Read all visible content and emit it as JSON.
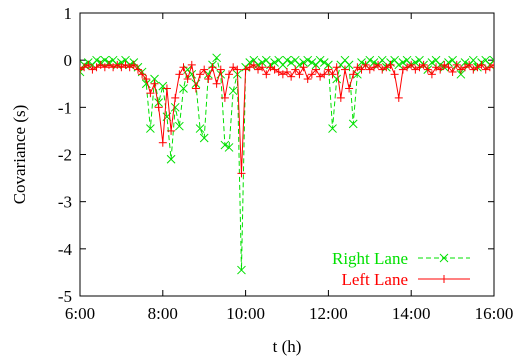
{
  "chart_data": {
    "type": "line",
    "title": "",
    "xlabel": "t (h)",
    "ylabel": "Covariance (s)",
    "xlim": [
      6,
      16
    ],
    "ylim": [
      -5,
      1
    ],
    "xticks": [
      {
        "value": 6,
        "label": "6:00"
      },
      {
        "value": 8,
        "label": "8:00"
      },
      {
        "value": 10,
        "label": "10:00"
      },
      {
        "value": 12,
        "label": "12:00"
      },
      {
        "value": 14,
        "label": "14:00"
      },
      {
        "value": 16,
        "label": "16:00"
      }
    ],
    "yticks": [
      {
        "value": 1,
        "label": "1"
      },
      {
        "value": 0,
        "label": "0"
      },
      {
        "value": -1,
        "label": "-1"
      },
      {
        "value": -2,
        "label": "-2"
      },
      {
        "value": -3,
        "label": "-3"
      },
      {
        "value": -4,
        "label": "-4"
      },
      {
        "value": -5,
        "label": "-5"
      }
    ],
    "grid": false,
    "legend_position": "bottom-right",
    "series": [
      {
        "name": "Right Lane",
        "color": "#00e000",
        "line_style": "dashed",
        "marker": "x",
        "points": [
          [
            6.0,
            -0.25
          ],
          [
            6.1,
            -0.1
          ],
          [
            6.2,
            -0.05
          ],
          [
            6.3,
            -0.1
          ],
          [
            6.4,
            0.0
          ],
          [
            6.5,
            -0.05
          ],
          [
            6.6,
            0.0
          ],
          [
            6.7,
            -0.05
          ],
          [
            6.8,
            0.0
          ],
          [
            6.9,
            -0.1
          ],
          [
            7.0,
            -0.05
          ],
          [
            7.1,
            0.0
          ],
          [
            7.2,
            -0.1
          ],
          [
            7.3,
            -0.05
          ],
          [
            7.4,
            -0.15
          ],
          [
            7.5,
            -0.25
          ],
          [
            7.6,
            -0.5
          ],
          [
            7.7,
            -1.45
          ],
          [
            7.8,
            -0.4
          ],
          [
            7.9,
            -0.9
          ],
          [
            8.0,
            -0.55
          ],
          [
            8.1,
            -1.2
          ],
          [
            8.2,
            -2.1
          ],
          [
            8.3,
            -1.0
          ],
          [
            8.4,
            -1.4
          ],
          [
            8.5,
            -0.6
          ],
          [
            8.6,
            -0.2
          ],
          [
            8.7,
            -0.3
          ],
          [
            8.8,
            -0.5
          ],
          [
            8.9,
            -1.45
          ],
          [
            9.0,
            -1.65
          ],
          [
            9.1,
            -0.3
          ],
          [
            9.2,
            -0.1
          ],
          [
            9.3,
            0.05
          ],
          [
            9.4,
            -0.3
          ],
          [
            9.5,
            -1.8
          ],
          [
            9.6,
            -1.85
          ],
          [
            9.7,
            -0.65
          ],
          [
            9.8,
            -0.3
          ],
          [
            9.9,
            -4.45
          ],
          [
            10.0,
            -0.15
          ],
          [
            10.1,
            -0.05
          ],
          [
            10.2,
            0.0
          ],
          [
            10.3,
            -0.1
          ],
          [
            10.4,
            -0.05
          ],
          [
            10.5,
            0.0
          ],
          [
            10.6,
            -0.1
          ],
          [
            10.7,
            -0.05
          ],
          [
            10.8,
            0.0
          ],
          [
            10.9,
            -0.1
          ],
          [
            11.0,
            0.0
          ],
          [
            11.1,
            -0.05
          ],
          [
            11.2,
            0.0
          ],
          [
            11.3,
            -0.1
          ],
          [
            11.4,
            -0.05
          ],
          [
            11.5,
            0.0
          ],
          [
            11.6,
            -0.05
          ],
          [
            11.7,
            -0.1
          ],
          [
            11.8,
            0.0
          ],
          [
            11.9,
            -0.05
          ],
          [
            12.0,
            -0.1
          ],
          [
            12.1,
            -1.45
          ],
          [
            12.2,
            -0.4
          ],
          [
            12.3,
            -0.1
          ],
          [
            12.4,
            0.0
          ],
          [
            12.5,
            -0.1
          ],
          [
            12.6,
            -1.35
          ],
          [
            12.7,
            -0.3
          ],
          [
            12.8,
            -0.05
          ],
          [
            12.9,
            -0.1
          ],
          [
            13.0,
            0.0
          ],
          [
            13.1,
            -0.05
          ],
          [
            13.2,
            -0.1
          ],
          [
            13.3,
            0.0
          ],
          [
            13.4,
            -0.15
          ],
          [
            13.5,
            -0.05
          ],
          [
            13.6,
            0.0
          ],
          [
            13.7,
            -0.1
          ],
          [
            13.8,
            -0.05
          ],
          [
            13.9,
            0.0
          ],
          [
            14.0,
            -0.1
          ],
          [
            14.1,
            -0.05
          ],
          [
            14.2,
            0.0
          ],
          [
            14.3,
            -0.1
          ],
          [
            14.4,
            -0.2
          ],
          [
            14.5,
            -0.05
          ],
          [
            14.6,
            0.0
          ],
          [
            14.7,
            -0.1
          ],
          [
            14.8,
            -0.15
          ],
          [
            14.9,
            -0.05
          ],
          [
            15.0,
            0.0
          ],
          [
            15.1,
            -0.1
          ],
          [
            15.2,
            -0.3
          ],
          [
            15.3,
            -0.05
          ],
          [
            15.4,
            -0.1
          ],
          [
            15.5,
            0.0
          ],
          [
            15.6,
            -0.15
          ],
          [
            15.7,
            -0.05
          ],
          [
            15.8,
            0.0
          ],
          [
            15.9,
            -0.1
          ],
          [
            16.0,
            0.0
          ]
        ]
      },
      {
        "name": "Left Lane",
        "color": "#ff0000",
        "line_style": "solid",
        "marker": "+",
        "points": [
          [
            6.0,
            -0.2
          ],
          [
            6.1,
            -0.15
          ],
          [
            6.2,
            -0.1
          ],
          [
            6.3,
            -0.2
          ],
          [
            6.4,
            -0.15
          ],
          [
            6.5,
            -0.1
          ],
          [
            6.6,
            -0.15
          ],
          [
            6.7,
            -0.1
          ],
          [
            6.8,
            -0.15
          ],
          [
            6.9,
            -0.1
          ],
          [
            7.0,
            -0.15
          ],
          [
            7.1,
            -0.1
          ],
          [
            7.2,
            -0.15
          ],
          [
            7.3,
            -0.1
          ],
          [
            7.4,
            -0.2
          ],
          [
            7.5,
            -0.3
          ],
          [
            7.6,
            -0.4
          ],
          [
            7.7,
            -0.7
          ],
          [
            7.8,
            -0.5
          ],
          [
            7.9,
            -1.0
          ],
          [
            8.0,
            -1.75
          ],
          [
            8.1,
            -0.6
          ],
          [
            8.2,
            -1.5
          ],
          [
            8.3,
            -0.8
          ],
          [
            8.4,
            -0.3
          ],
          [
            8.5,
            -0.15
          ],
          [
            8.6,
            -0.4
          ],
          [
            8.7,
            -0.1
          ],
          [
            8.8,
            -0.6
          ],
          [
            8.9,
            -0.3
          ],
          [
            9.0,
            -0.2
          ],
          [
            9.1,
            -0.4
          ],
          [
            9.2,
            -0.15
          ],
          [
            9.3,
            -0.5
          ],
          [
            9.4,
            -0.2
          ],
          [
            9.5,
            -0.8
          ],
          [
            9.6,
            -0.3
          ],
          [
            9.7,
            -0.15
          ],
          [
            9.8,
            -0.2
          ],
          [
            9.9,
            -2.4
          ],
          [
            10.0,
            -0.2
          ],
          [
            10.1,
            -0.15
          ],
          [
            10.2,
            -0.1
          ],
          [
            10.3,
            -0.2
          ],
          [
            10.4,
            -0.15
          ],
          [
            10.5,
            -0.3
          ],
          [
            10.6,
            -0.15
          ],
          [
            10.7,
            -0.2
          ],
          [
            10.8,
            -0.25
          ],
          [
            10.9,
            -0.3
          ],
          [
            11.0,
            -0.25
          ],
          [
            11.1,
            -0.35
          ],
          [
            11.2,
            -0.2
          ],
          [
            11.3,
            -0.3
          ],
          [
            11.4,
            -0.15
          ],
          [
            11.5,
            -0.4
          ],
          [
            11.6,
            -0.3
          ],
          [
            11.7,
            -0.2
          ],
          [
            11.8,
            -0.35
          ],
          [
            11.9,
            -0.3
          ],
          [
            12.0,
            -0.2
          ],
          [
            12.1,
            -0.3
          ],
          [
            12.2,
            -0.15
          ],
          [
            12.3,
            -0.8
          ],
          [
            12.4,
            -0.2
          ],
          [
            12.5,
            -0.6
          ],
          [
            12.6,
            -0.3
          ],
          [
            12.7,
            -0.15
          ],
          [
            12.8,
            -0.2
          ],
          [
            12.9,
            -0.1
          ],
          [
            13.0,
            -0.2
          ],
          [
            13.1,
            -0.15
          ],
          [
            13.2,
            -0.1
          ],
          [
            13.3,
            -0.2
          ],
          [
            13.4,
            -0.15
          ],
          [
            13.5,
            -0.1
          ],
          [
            13.6,
            -0.3
          ],
          [
            13.7,
            -0.8
          ],
          [
            13.8,
            -0.2
          ],
          [
            13.9,
            -0.15
          ],
          [
            14.0,
            -0.1
          ],
          [
            14.1,
            -0.2
          ],
          [
            14.2,
            -0.15
          ],
          [
            14.3,
            -0.1
          ],
          [
            14.4,
            -0.2
          ],
          [
            14.5,
            -0.3
          ],
          [
            14.6,
            -0.15
          ],
          [
            14.7,
            -0.2
          ],
          [
            14.8,
            -0.1
          ],
          [
            14.9,
            -0.15
          ],
          [
            15.0,
            -0.25
          ],
          [
            15.1,
            -0.1
          ],
          [
            15.2,
            -0.2
          ],
          [
            15.3,
            -0.15
          ],
          [
            15.4,
            -0.1
          ],
          [
            15.5,
            -0.2
          ],
          [
            15.6,
            -0.15
          ],
          [
            15.7,
            -0.1
          ],
          [
            15.8,
            -0.2
          ],
          [
            15.9,
            -0.15
          ],
          [
            16.0,
            -0.1
          ]
        ]
      }
    ]
  }
}
